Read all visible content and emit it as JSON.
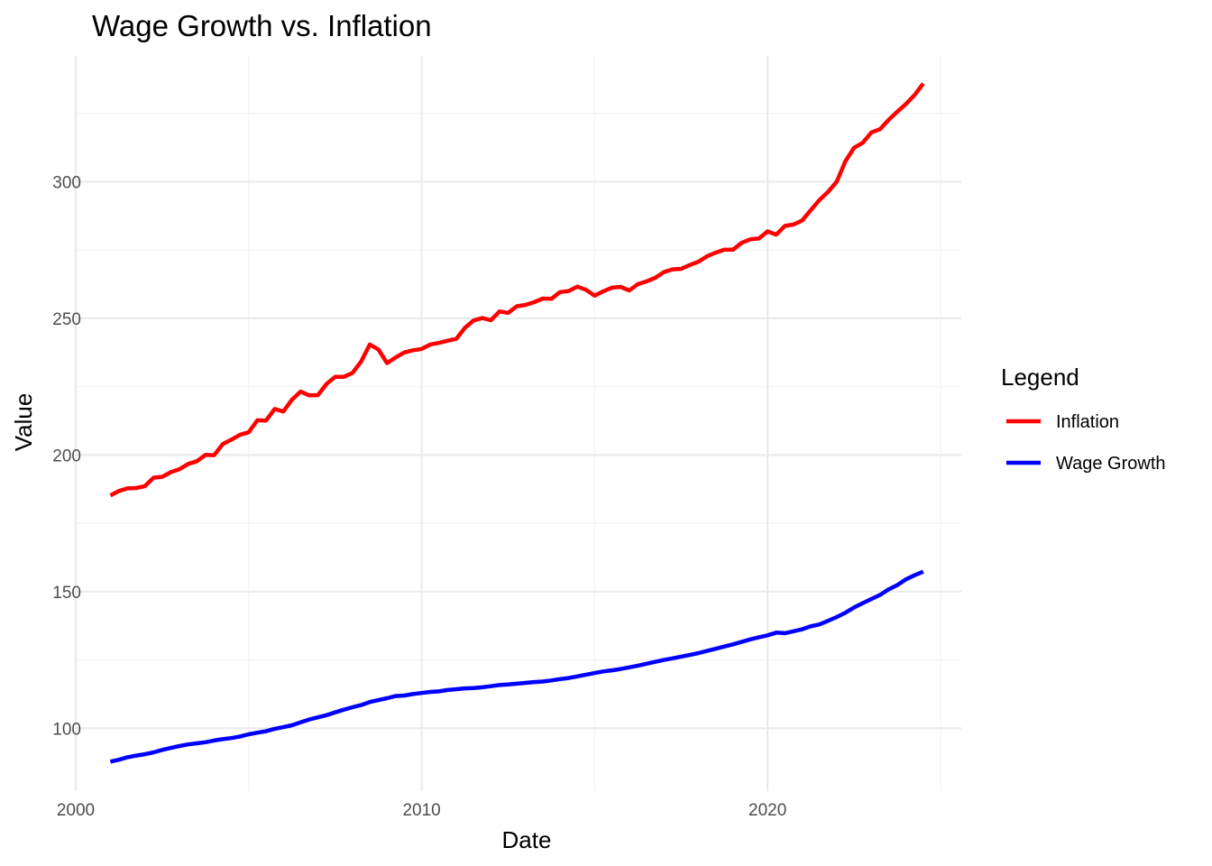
{
  "chart_data": {
    "type": "line",
    "title": "Wage Growth vs. Inflation",
    "xlabel": "Date",
    "ylabel": "Value",
    "x_unit": "year",
    "xlim": [
      2000,
      2025.6
    ],
    "ylim": [
      77,
      346
    ],
    "x_ticks": [
      2000,
      2010,
      2020
    ],
    "x_tick_labels": [
      "2000",
      "2010",
      "2020"
    ],
    "y_ticks": [
      100,
      150,
      200,
      250,
      300
    ],
    "y_tick_labels": [
      "100",
      "150",
      "200",
      "250",
      "300"
    ],
    "grid": true,
    "legend": {
      "title": "Legend",
      "placement": "right"
    },
    "series": [
      {
        "name": "Inflation",
        "color": "#ff0000",
        "points": [
          [
            2001.0,
            185.2
          ],
          [
            2001.25,
            186.8
          ],
          [
            2001.5,
            187.8
          ],
          [
            2001.75,
            187.9
          ],
          [
            2002.0,
            188.6
          ],
          [
            2002.25,
            191.7
          ],
          [
            2002.5,
            192.0
          ],
          [
            2002.75,
            193.7
          ],
          [
            2003.0,
            194.8
          ],
          [
            2003.25,
            196.7
          ],
          [
            2003.5,
            197.7
          ],
          [
            2003.75,
            200.0
          ],
          [
            2004.0,
            199.9
          ],
          [
            2004.25,
            204.0
          ],
          [
            2004.5,
            205.6
          ],
          [
            2004.75,
            207.4
          ],
          [
            2005.0,
            208.3
          ],
          [
            2005.25,
            212.7
          ],
          [
            2005.5,
            212.6
          ],
          [
            2005.75,
            216.8
          ],
          [
            2006.0,
            215.9
          ],
          [
            2006.25,
            220.2
          ],
          [
            2006.5,
            223.2
          ],
          [
            2006.75,
            221.8
          ],
          [
            2007.0,
            221.9
          ],
          [
            2007.25,
            226.0
          ],
          [
            2007.5,
            228.6
          ],
          [
            2007.75,
            228.6
          ],
          [
            2008.0,
            230.0
          ],
          [
            2008.25,
            234.2
          ],
          [
            2008.5,
            240.4
          ],
          [
            2008.75,
            238.6
          ],
          [
            2009.0,
            233.6
          ],
          [
            2009.25,
            235.7
          ],
          [
            2009.5,
            237.5
          ],
          [
            2009.75,
            238.3
          ],
          [
            2010.0,
            238.8
          ],
          [
            2010.25,
            240.4
          ],
          [
            2010.5,
            241.0
          ],
          [
            2010.75,
            241.8
          ],
          [
            2011.0,
            242.5
          ],
          [
            2011.25,
            246.5
          ],
          [
            2011.5,
            249.2
          ],
          [
            2011.75,
            250.1
          ],
          [
            2012.0,
            249.3
          ],
          [
            2012.25,
            252.5
          ],
          [
            2012.5,
            252.0
          ],
          [
            2012.75,
            254.4
          ],
          [
            2013.0,
            254.9
          ],
          [
            2013.25,
            255.9
          ],
          [
            2013.5,
            257.2
          ],
          [
            2013.75,
            257.1
          ],
          [
            2014.0,
            259.6
          ],
          [
            2014.25,
            260.0
          ],
          [
            2014.5,
            261.6
          ],
          [
            2014.75,
            260.4
          ],
          [
            2015.0,
            258.3
          ],
          [
            2015.25,
            259.9
          ],
          [
            2015.5,
            261.2
          ],
          [
            2015.75,
            261.5
          ],
          [
            2016.0,
            260.2
          ],
          [
            2016.25,
            262.5
          ],
          [
            2016.5,
            263.5
          ],
          [
            2016.75,
            264.8
          ],
          [
            2017.0,
            266.9
          ],
          [
            2017.25,
            267.9
          ],
          [
            2017.5,
            268.1
          ],
          [
            2017.75,
            269.5
          ],
          [
            2018.0,
            270.7
          ],
          [
            2018.25,
            272.7
          ],
          [
            2018.5,
            274.0
          ],
          [
            2018.75,
            275.1
          ],
          [
            2019.0,
            275.1
          ],
          [
            2019.25,
            277.6
          ],
          [
            2019.5,
            278.9
          ],
          [
            2019.75,
            279.2
          ],
          [
            2020.0,
            281.8
          ],
          [
            2020.25,
            280.6
          ],
          [
            2020.5,
            283.8
          ],
          [
            2020.75,
            284.3
          ],
          [
            2021.0,
            285.8
          ],
          [
            2021.25,
            289.6
          ],
          [
            2021.5,
            293.3
          ],
          [
            2021.75,
            296.3
          ],
          [
            2022.0,
            300.0
          ],
          [
            2022.25,
            307.5
          ],
          [
            2022.5,
            312.4
          ],
          [
            2022.75,
            314.2
          ],
          [
            2023.0,
            318.0
          ],
          [
            2023.25,
            319.2
          ],
          [
            2023.5,
            322.6
          ],
          [
            2023.75,
            325.6
          ],
          [
            2024.0,
            328.4
          ],
          [
            2024.25,
            331.7
          ],
          [
            2024.5,
            335.9
          ]
        ]
      },
      {
        "name": "Wage Growth",
        "color": "#0000ff",
        "points": [
          [
            2001.0,
            87.8
          ],
          [
            2001.25,
            88.5
          ],
          [
            2001.5,
            89.4
          ],
          [
            2001.75,
            90.0
          ],
          [
            2002.0,
            90.5
          ],
          [
            2002.25,
            91.2
          ],
          [
            2002.5,
            92.1
          ],
          [
            2002.75,
            92.8
          ],
          [
            2003.0,
            93.5
          ],
          [
            2003.25,
            94.1
          ],
          [
            2003.5,
            94.5
          ],
          [
            2003.75,
            94.9
          ],
          [
            2004.0,
            95.5
          ],
          [
            2004.25,
            96.0
          ],
          [
            2004.5,
            96.4
          ],
          [
            2004.75,
            97.0
          ],
          [
            2005.0,
            97.8
          ],
          [
            2005.25,
            98.4
          ],
          [
            2005.5,
            98.9
          ],
          [
            2005.75,
            99.8
          ],
          [
            2006.0,
            100.4
          ],
          [
            2006.25,
            101.1
          ],
          [
            2006.5,
            102.2
          ],
          [
            2006.75,
            103.2
          ],
          [
            2007.0,
            104.0
          ],
          [
            2007.25,
            104.8
          ],
          [
            2007.5,
            105.8
          ],
          [
            2007.75,
            106.8
          ],
          [
            2008.0,
            107.7
          ],
          [
            2008.25,
            108.5
          ],
          [
            2008.5,
            109.6
          ],
          [
            2008.75,
            110.3
          ],
          [
            2009.0,
            111.0
          ],
          [
            2009.25,
            111.8
          ],
          [
            2009.5,
            112.0
          ],
          [
            2009.75,
            112.5
          ],
          [
            2010.0,
            112.9
          ],
          [
            2010.25,
            113.3
          ],
          [
            2010.5,
            113.5
          ],
          [
            2010.75,
            114.0
          ],
          [
            2011.0,
            114.3
          ],
          [
            2011.25,
            114.6
          ],
          [
            2011.5,
            114.7
          ],
          [
            2011.75,
            115.0
          ],
          [
            2012.0,
            115.4
          ],
          [
            2012.25,
            115.8
          ],
          [
            2012.5,
            116.0
          ],
          [
            2012.75,
            116.3
          ],
          [
            2013.0,
            116.6
          ],
          [
            2013.25,
            116.9
          ],
          [
            2013.5,
            117.1
          ],
          [
            2013.75,
            117.5
          ],
          [
            2014.0,
            118.0
          ],
          [
            2014.25,
            118.4
          ],
          [
            2014.5,
            119.0
          ],
          [
            2014.75,
            119.6
          ],
          [
            2015.0,
            120.2
          ],
          [
            2015.25,
            120.8
          ],
          [
            2015.5,
            121.2
          ],
          [
            2015.75,
            121.7
          ],
          [
            2016.0,
            122.3
          ],
          [
            2016.25,
            122.9
          ],
          [
            2016.5,
            123.6
          ],
          [
            2016.75,
            124.3
          ],
          [
            2017.0,
            125.0
          ],
          [
            2017.25,
            125.6
          ],
          [
            2017.5,
            126.2
          ],
          [
            2017.75,
            126.8
          ],
          [
            2018.0,
            127.5
          ],
          [
            2018.25,
            128.3
          ],
          [
            2018.5,
            129.1
          ],
          [
            2018.75,
            129.9
          ],
          [
            2019.0,
            130.7
          ],
          [
            2019.25,
            131.6
          ],
          [
            2019.5,
            132.5
          ],
          [
            2019.75,
            133.3
          ],
          [
            2020.0,
            134.0
          ],
          [
            2020.25,
            135.0
          ],
          [
            2020.5,
            134.8
          ],
          [
            2020.75,
            135.5
          ],
          [
            2021.0,
            136.2
          ],
          [
            2021.25,
            137.3
          ],
          [
            2021.5,
            138.0
          ],
          [
            2021.75,
            139.3
          ],
          [
            2022.0,
            140.7
          ],
          [
            2022.25,
            142.3
          ],
          [
            2022.5,
            144.2
          ],
          [
            2022.75,
            145.8
          ],
          [
            2023.0,
            147.3
          ],
          [
            2023.25,
            148.8
          ],
          [
            2023.5,
            150.8
          ],
          [
            2023.75,
            152.4
          ],
          [
            2024.0,
            154.5
          ],
          [
            2024.25,
            156.0
          ],
          [
            2024.5,
            157.3
          ]
        ]
      }
    ]
  }
}
